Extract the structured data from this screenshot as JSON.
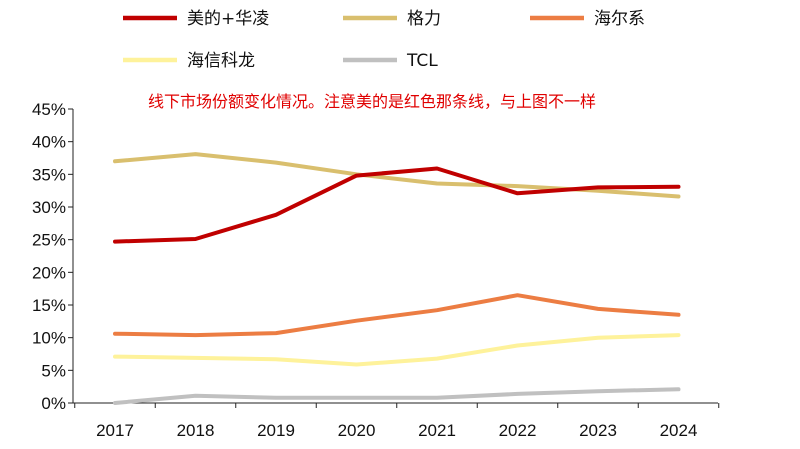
{
  "chart_data": {
    "type": "line",
    "title": "",
    "annotation": "线下市场份额变化情况。注意美的是红色那条线，与上图不一样",
    "x": [
      "2017",
      "2018",
      "2019",
      "2020",
      "2021",
      "2022",
      "2023",
      "2024"
    ],
    "y_ticks": [
      "0%",
      "5%",
      "10%",
      "15%",
      "20%",
      "25%",
      "30%",
      "35%",
      "40%",
      "45%"
    ],
    "ylim": [
      0,
      45
    ],
    "grid": false,
    "legend_position": "top",
    "series": [
      {
        "name": "美的+华凌",
        "color": "#c00000",
        "values": [
          24.7,
          25.1,
          28.8,
          34.8,
          35.9,
          32.1,
          33.0,
          33.1
        ]
      },
      {
        "name": "格力",
        "color": "#d9bf6e",
        "values": [
          37.0,
          38.1,
          36.8,
          35.0,
          33.6,
          33.2,
          32.5,
          31.6
        ]
      },
      {
        "name": "海尔系",
        "color": "#ec7d43",
        "values": [
          10.6,
          10.4,
          10.7,
          12.6,
          14.2,
          16.5,
          14.4,
          13.5
        ]
      },
      {
        "name": "海信科龙",
        "color": "#fef29b",
        "values": [
          7.1,
          6.9,
          6.7,
          5.9,
          6.8,
          8.8,
          10.0,
          10.4
        ]
      },
      {
        "name": "TCL",
        "color": "#c0c0c0",
        "values": [
          0.0,
          1.1,
          0.8,
          0.8,
          0.8,
          1.4,
          1.8,
          2.1
        ]
      }
    ]
  }
}
